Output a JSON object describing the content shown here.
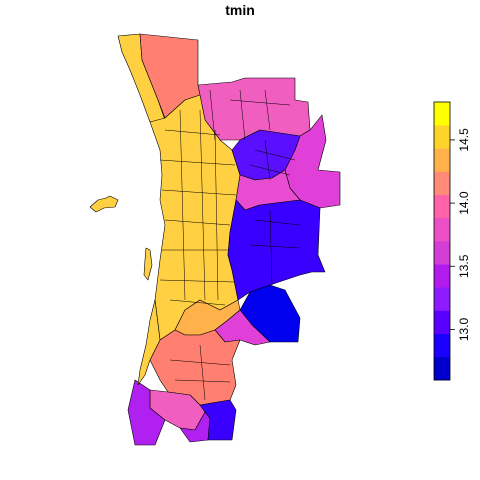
{
  "title": "tmin",
  "legend": {
    "ticks": [
      "13.0",
      "13.5",
      "14.0",
      "14.5"
    ],
    "tick_values": [
      13.0,
      13.5,
      14.0,
      14.5
    ],
    "range": [
      12.6,
      14.8
    ],
    "colors": [
      "#0000CC",
      "#1A00FF",
      "#5A00FF",
      "#8E1AFF",
      "#B21AEE",
      "#D23ED6",
      "#EC4FC6",
      "#FF62A8",
      "#FF8A78",
      "#FFB24A",
      "#FFD42A",
      "#FFFF00"
    ]
  },
  "colors": {
    "yellow": "#FFD042",
    "gold": "#FFB24A",
    "salmon": "#FF8070",
    "pink": "#F05EC0",
    "magenta": "#E040D8",
    "purple": "#B020F0",
    "violet": "#7A10FF",
    "blue": "#2A00FF",
    "deepblue": "#0000EE"
  }
}
